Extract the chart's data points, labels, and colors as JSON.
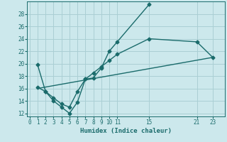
{
  "bg_color": "#cce8ec",
  "grid_color": "#aacfd4",
  "line_color": "#1a6b6b",
  "line_width": 1.0,
  "marker": "D",
  "marker_size": 2.5,
  "series1_x": [
    1,
    2,
    3,
    4,
    5,
    6,
    7,
    8,
    9,
    10,
    11,
    15
  ],
  "series1_y": [
    19.8,
    15.5,
    14.0,
    13.0,
    12.0,
    13.8,
    17.5,
    17.7,
    19.3,
    22.0,
    23.5,
    29.5
  ],
  "series2_x": [
    1,
    2,
    3,
    4,
    5,
    6,
    7,
    8,
    9,
    10,
    11,
    15,
    21,
    23
  ],
  "series2_y": [
    16.2,
    15.5,
    14.5,
    13.5,
    13.0,
    15.5,
    17.5,
    18.5,
    19.5,
    20.5,
    21.5,
    24.0,
    23.5,
    21.0
  ],
  "series3_x": [
    1,
    23
  ],
  "series3_y": [
    16.0,
    21.0
  ],
  "xlabel": "Humidex (Indice chaleur)",
  "xticks": [
    0,
    1,
    2,
    3,
    4,
    5,
    6,
    7,
    8,
    9,
    10,
    11,
    15,
    21,
    23
  ],
  "yticks": [
    12,
    14,
    16,
    18,
    20,
    22,
    24,
    26,
    28
  ],
  "xlim": [
    -0.3,
    24.5
  ],
  "ylim": [
    11.5,
    30.0
  ]
}
